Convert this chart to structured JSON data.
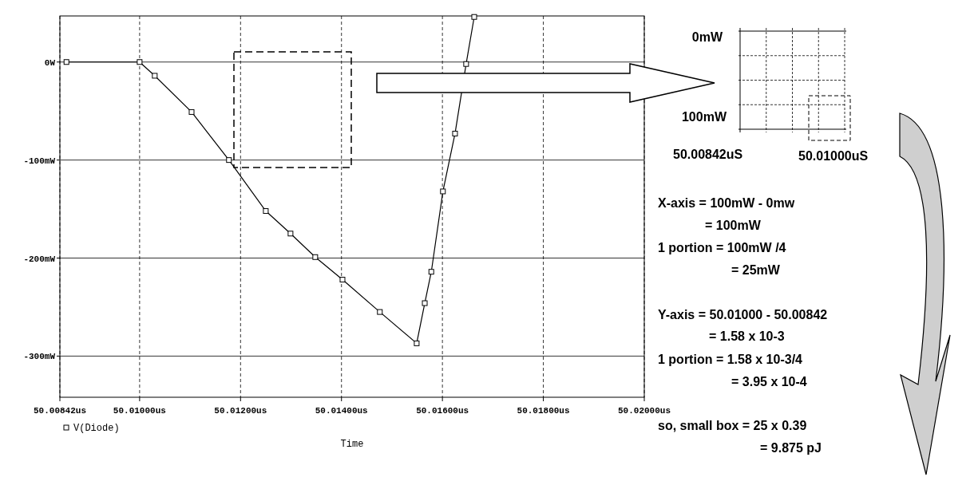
{
  "chart_data": {
    "type": "line",
    "xlabel": "Time",
    "xlim": [
      50.00842,
      50.02
    ],
    "ylim": [
      -342,
      47
    ],
    "xticks": [
      {
        "value": 50.00842,
        "label": "50.00842us"
      },
      {
        "value": 50.01,
        "label": "50.01000us"
      },
      {
        "value": 50.012,
        "label": "50.01200us"
      },
      {
        "value": 50.014,
        "label": "50.01400us"
      },
      {
        "value": 50.016,
        "label": "50.01600us"
      },
      {
        "value": 50.018,
        "label": "50.01800us"
      },
      {
        "value": 50.02,
        "label": "50.02000us"
      }
    ],
    "yticks": [
      {
        "value": 0,
        "label": "0W"
      },
      {
        "value": -100,
        "label": "-100mW"
      },
      {
        "value": -200,
        "label": "-200mW"
      },
      {
        "value": -300,
        "label": "-300mW"
      }
    ],
    "grid": true,
    "legend": "bottom left",
    "marker": "square",
    "line_style": "solid",
    "series": [
      {
        "name": "V(Diode)",
        "color": "#000000",
        "x": [
          50.00855,
          50.01,
          50.0103,
          50.01103,
          50.01177,
          50.0125,
          50.01299,
          50.01348,
          50.01402,
          50.01476,
          50.01549,
          50.01565,
          50.01578,
          50.01601,
          50.01625,
          50.01647,
          50.01663
        ],
        "values": [
          0,
          0,
          -14,
          -51,
          -100,
          -152,
          -175,
          -199,
          -222,
          -255,
          -287,
          -246,
          -214,
          -132,
          -73,
          -2,
          46
        ]
      }
    ],
    "annotations": [
      "0mW",
      "100mW",
      "50.00842uS",
      "50.01000uS",
      "X-axis = 100mW - 0mw",
      "= 100mW",
      "1 portion = 100mW /4",
      "= 25mW",
      "Y-axis = 50.01000 - 50.00842",
      "= 1.58 x 10-3",
      "1 portion = 1.58 x 10-3/4",
      "= 3.95 x 10-4",
      "so, small box = 25 x 0.39",
      "= 9.875 pJ"
    ]
  }
}
